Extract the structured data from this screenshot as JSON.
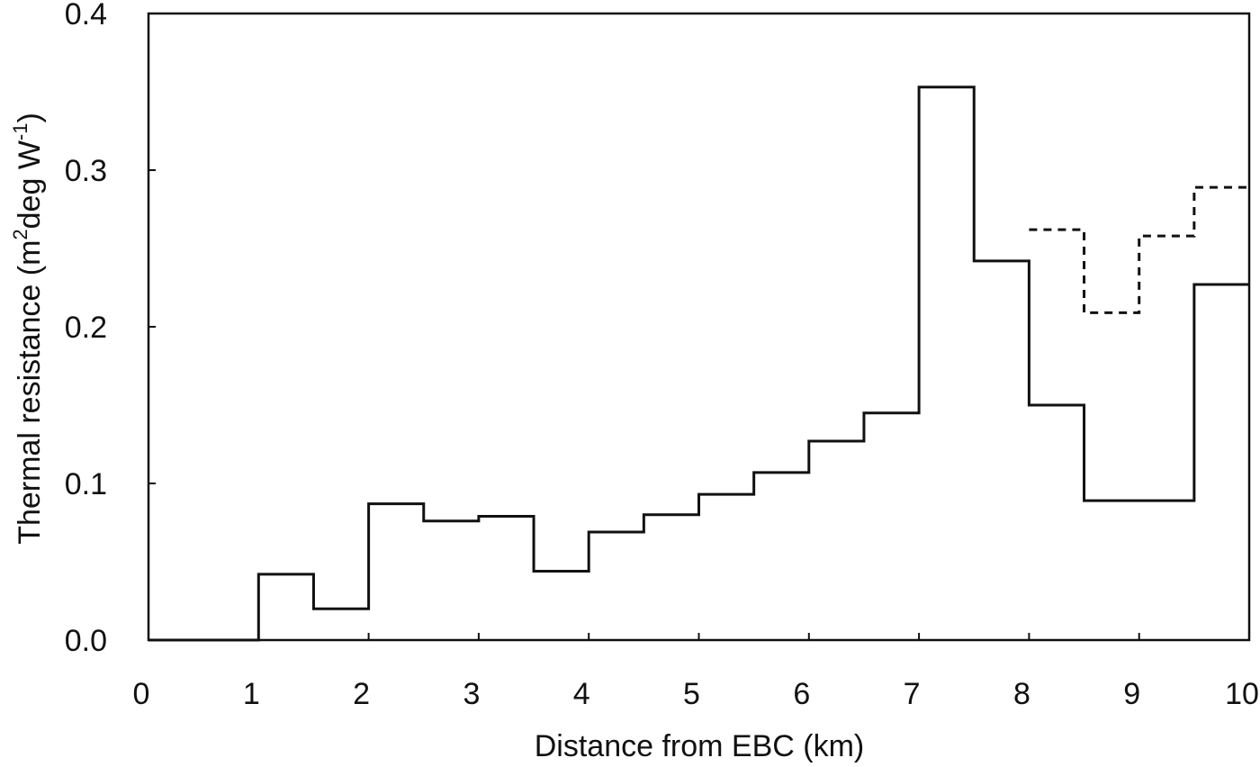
{
  "chart_data": {
    "type": "line",
    "subtype": "step",
    "title": "",
    "xlabel": "Distance from EBC (km)",
    "ylabel": {
      "parts": [
        {
          "text": "Thermal resistance (m",
          "sup": false
        },
        {
          "text": "2",
          "sup": true
        },
        {
          "text": "deg W",
          "sup": false
        },
        {
          "text": "-1",
          "sup": true
        },
        {
          "text": ")",
          "sup": false
        }
      ]
    },
    "xlim": [
      0,
      10
    ],
    "ylim": [
      0,
      0.4
    ],
    "xticks": [
      "0",
      "1",
      "2",
      "3",
      "4",
      "5",
      "6",
      "7",
      "8",
      "9",
      "10"
    ],
    "xtick_values": [
      0,
      1,
      2,
      3,
      4,
      5,
      6,
      7,
      8,
      9,
      10
    ],
    "yticks": [
      "0.0",
      "0.1",
      "0.2",
      "0.3",
      "0.4"
    ],
    "ytick_values": [
      0,
      0.1,
      0.2,
      0.3,
      0.4
    ],
    "grid": false,
    "legend": "none",
    "series": [
      {
        "style": "solid",
        "color": "#111111",
        "bin_edges": [
          0,
          1,
          1.5,
          2,
          2.5,
          3,
          3.5,
          4,
          4.5,
          5,
          5.5,
          6,
          6.5,
          7,
          7.5,
          8,
          8.5,
          9,
          9.5,
          10
        ],
        "values": [
          0.0,
          0.042,
          0.02,
          0.087,
          0.076,
          0.079,
          0.044,
          0.069,
          0.08,
          0.093,
          0.107,
          0.127,
          0.145,
          0.353,
          0.242,
          0.15,
          0.089,
          0.089,
          0.227
        ]
      },
      {
        "style": "dotted",
        "color": "#111111",
        "bin_edges": [
          8,
          8.5,
          9,
          9.5,
          10
        ],
        "values": [
          0.262,
          0.209,
          0.258,
          0.289
        ]
      }
    ]
  }
}
